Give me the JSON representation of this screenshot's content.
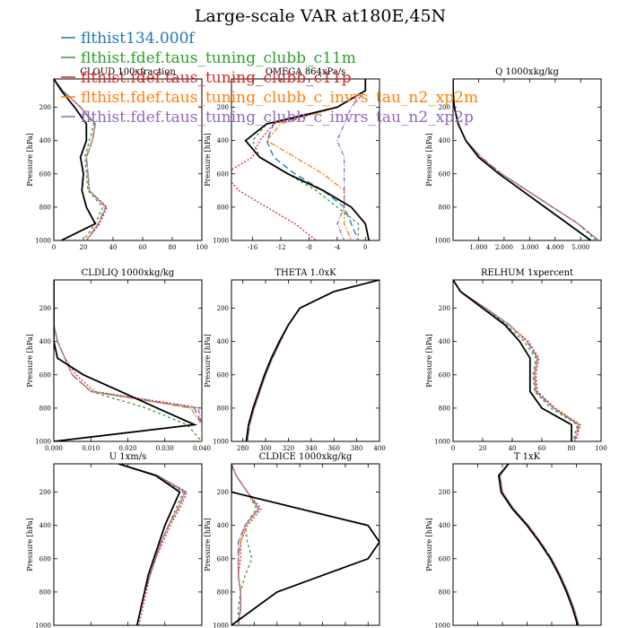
{
  "chart_data": {
    "type": "line",
    "title": "Large-scale VAR at180E,45N",
    "ylabel": "Pressure [hPa]",
    "series_names": [
      "flthist134.000f",
      "flthist.fdef.taus_tuning_clubb_c11m",
      "flthist.fdef.taus_tuning_clubb_c11p",
      "flthist.fdef.taus_tuning_clubb_c_invrs_tau_n2_xp2m",
      "flthist.fdef.taus_tuning_clubb_c_invrs_tau_n2_xp2p"
    ],
    "series_colors": [
      "#1f77b4",
      "#2ca02c",
      "#d62728",
      "#ff7f0e",
      "#9467bd"
    ],
    "control_color": "#000000",
    "pressure_levels": [
      30,
      100,
      200,
      300,
      400,
      500,
      600,
      700,
      800,
      900,
      1000
    ],
    "ylim": [
      1000,
      30
    ],
    "yticks": [
      200,
      400,
      600,
      800,
      1000
    ],
    "panels": [
      {
        "title": "CLOUD  100xfraction",
        "xlim": [
          0,
          100
        ],
        "xticks": [
          0,
          20,
          40,
          60,
          80,
          100
        ],
        "xticklabels": [
          "0",
          "20",
          "40",
          "60",
          "80",
          "100"
        ],
        "control": [
          0,
          5,
          14,
          22,
          22,
          18,
          20,
          19,
          22,
          28,
          5
        ],
        "perturbed": [
          [
            0,
            6,
            18,
            28,
            26,
            22,
            23,
            24,
            35,
            30,
            22
          ],
          [
            0,
            6,
            18,
            27,
            24,
            21,
            22,
            23,
            33,
            28,
            20
          ],
          [
            0,
            6,
            18,
            28,
            26,
            22,
            23,
            24,
            36,
            31,
            22
          ],
          [
            0,
            6,
            18,
            28,
            26,
            22,
            23,
            24,
            35,
            30,
            22
          ],
          [
            0,
            6,
            18,
            28,
            26,
            22,
            23,
            24,
            35,
            30,
            22
          ]
        ]
      },
      {
        "title": "OMEGA  864xPa/s",
        "xlim": [
          -19,
          2
        ],
        "xticks": [
          -16,
          -12,
          -8,
          -4,
          0
        ],
        "xticklabels": [
          "-16",
          "-12",
          "-8",
          "-4",
          "0"
        ],
        "control": [
          0,
          0,
          -4,
          -14,
          -17,
          -15,
          -11,
          -6,
          -2,
          0,
          0.5
        ],
        "perturbed": [
          [
            0,
            0,
            -4,
            -13,
            -14,
            -13,
            -10,
            -6,
            -3,
            -2,
            -1
          ],
          [
            0,
            0,
            -4,
            -14,
            -16,
            -15,
            -11,
            -7,
            -4,
            -1,
            -1
          ],
          [
            0,
            0,
            -4,
            -13,
            -15,
            -16,
            -20,
            -18,
            -14,
            -10,
            -7
          ],
          [
            0,
            0,
            -4,
            -12,
            -14,
            -10,
            -6,
            -3,
            -3,
            -3,
            -2
          ],
          [
            0,
            0,
            -2,
            -3,
            -4,
            -3,
            -3,
            -3,
            -3,
            -4,
            -3
          ]
        ]
      },
      {
        "title": "Q  1000xkg/kg",
        "xlim": [
          0,
          5.8
        ],
        "xticks": [
          1,
          2,
          3,
          4,
          5
        ],
        "xticklabels": [
          "1.000",
          "2.000",
          "3.000",
          "4.000",
          "5.000"
        ],
        "control": [
          0,
          0,
          0.05,
          0.2,
          0.5,
          1,
          1.8,
          2.7,
          3.6,
          4.5,
          5.4
        ],
        "perturbed": [
          [
            0,
            0,
            0.05,
            0.2,
            0.5,
            1.1,
            1.9,
            2.9,
            3.9,
            4.9,
            5.7
          ],
          [
            0,
            0,
            0.05,
            0.2,
            0.5,
            1.1,
            1.9,
            2.9,
            3.9,
            4.9,
            5.6
          ],
          [
            0,
            0,
            0.05,
            0.2,
            0.5,
            1.1,
            1.9,
            2.9,
            3.9,
            4.9,
            5.7
          ],
          [
            0,
            0,
            0.05,
            0.2,
            0.5,
            1.1,
            1.9,
            2.9,
            3.9,
            4.9,
            5.7
          ],
          [
            0,
            0,
            0.05,
            0.2,
            0.5,
            1.1,
            1.9,
            2.9,
            3.9,
            4.9,
            5.7
          ]
        ]
      },
      {
        "title": "CLDLIQ  1000xkg/kg",
        "xlim": [
          0,
          0.04
        ],
        "xticks": [
          0,
          0.01,
          0.02,
          0.03,
          0.04
        ],
        "xticklabels": [
          "0.000",
          "0.010",
          "0.020",
          "0.030",
          "0.040"
        ],
        "control": [
          0,
          0,
          0,
          0,
          0,
          0.001,
          0.008,
          0.018,
          0.028,
          0.038,
          0
        ],
        "perturbed": [
          [
            0,
            0,
            0,
            0,
            0.001,
            0.003,
            0.005,
            0.01,
            0.038,
            0.04,
            0.04
          ],
          [
            0,
            0,
            0,
            0,
            0.001,
            0.003,
            0.005,
            0.01,
            0.025,
            0.036,
            0.04
          ],
          [
            0,
            0,
            0,
            0,
            0.001,
            0.003,
            0.006,
            0.011,
            0.04,
            0.04,
            0.04
          ],
          [
            0,
            0,
            0,
            0,
            0.001,
            0.003,
            0.005,
            0.01,
            0.037,
            0.04,
            0.04
          ],
          [
            0,
            0,
            0,
            0,
            0.001,
            0.003,
            0.005,
            0.01,
            0.039,
            0.04,
            0.04
          ]
        ]
      },
      {
        "title": "THETA  1.0xK",
        "xlim": [
          270,
          400
        ],
        "xticks": [
          280,
          300,
          320,
          340,
          360,
          380,
          400
        ],
        "xticklabels": [
          "280",
          "300",
          "320",
          "340",
          "360",
          "380",
          "400"
        ],
        "control": [
          400,
          360,
          330,
          320,
          312,
          305,
          299,
          294,
          289,
          285,
          283
        ],
        "perturbed": [
          [
            400,
            360,
            330,
            320,
            313,
            306,
            300,
            295,
            290,
            286,
            284
          ],
          [
            400,
            360,
            330,
            320,
            313,
            306,
            300,
            295,
            290,
            286,
            284
          ],
          [
            400,
            360,
            330,
            320,
            313,
            306,
            300,
            295,
            290,
            286,
            284
          ],
          [
            400,
            360,
            330,
            320,
            313,
            306,
            300,
            295,
            290,
            286,
            284
          ],
          [
            400,
            360,
            330,
            320,
            313,
            306,
            300,
            295,
            290,
            286,
            284
          ]
        ]
      },
      {
        "title": "RELHUM  1xpercent",
        "xlim": [
          0,
          100
        ],
        "xticks": [
          0,
          20,
          40,
          60,
          80,
          100
        ],
        "xticklabels": [
          "0",
          "20",
          "40",
          "60",
          "80",
          "100"
        ],
        "control": [
          0,
          5,
          20,
          35,
          45,
          52,
          52,
          52,
          60,
          80,
          80
        ],
        "perturbed": [
          [
            0,
            5,
            22,
            38,
            50,
            57,
            55,
            56,
            68,
            85,
            82
          ],
          [
            0,
            5,
            22,
            36,
            48,
            56,
            54,
            55,
            66,
            84,
            81
          ],
          [
            0,
            5,
            22,
            38,
            51,
            58,
            56,
            57,
            69,
            86,
            83
          ],
          [
            0,
            5,
            22,
            38,
            50,
            57,
            55,
            56,
            68,
            85,
            82
          ],
          [
            0,
            5,
            22,
            38,
            50,
            57,
            55,
            56,
            68,
            85,
            82
          ]
        ]
      },
      {
        "title": "U  1xm/s",
        "xlim": [
          -40,
          40
        ],
        "xticks": [
          -40,
          -20,
          0,
          20,
          40
        ],
        "xticklabels": [
          "-40",
          "-20",
          "0",
          "20",
          "40"
        ],
        "control": [
          -5,
          15,
          28,
          24,
          20,
          17,
          14,
          11,
          9,
          7,
          5
        ],
        "perturbed": [
          [
            -5,
            16,
            31,
            27,
            22,
            18,
            15,
            12,
            9,
            7,
            5
          ],
          [
            -5,
            16,
            30,
            26,
            22,
            18,
            15,
            12,
            9,
            7,
            5
          ],
          [
            -5,
            16,
            32,
            28,
            23,
            19,
            15,
            12,
            10,
            8,
            6
          ],
          [
            -5,
            16,
            31,
            27,
            22,
            18,
            15,
            12,
            9,
            7,
            5
          ],
          [
            -5,
            16,
            31,
            27,
            22,
            18,
            15,
            12,
            9,
            7,
            5
          ]
        ]
      },
      {
        "title": "CLDICE  1000xkg/kg",
        "xlim": [
          0,
          0.0065
        ],
        "xticks": [
          0,
          0.001,
          0.002,
          0.003,
          0.004,
          0.005,
          0.006
        ],
        "xticklabels": [
          "0.0000000000",
          "0.0010000000",
          "0.0019999999",
          "0.0029999999",
          "0.0039999999",
          "0.0049999999",
          "0.0060000000"
        ],
        "control": [
          0,
          0,
          0,
          0.003,
          0.006,
          0.0065,
          0.006,
          0.004,
          0.002,
          0.001,
          0
        ],
        "perturbed": [
          [
            0,
            0.0002,
            0.0007,
            0.0012,
            0.0006,
            0.0003,
            0.0003,
            0.0003,
            0.0004,
            0.0004,
            0.0003
          ],
          [
            0,
            0.0002,
            0.0007,
            0.0011,
            0.0006,
            0.0007,
            0.0009,
            0.0006,
            0.0004,
            0.0003,
            0.0003
          ],
          [
            0,
            0.0002,
            0.0007,
            0.0013,
            0.0007,
            0.0004,
            0.0004,
            0.0003,
            0.0004,
            0.0004,
            0.0003
          ],
          [
            0,
            0.0002,
            0.0007,
            0.0012,
            0.0006,
            0.0004,
            0.0003,
            0.0003,
            0.0004,
            0.0004,
            0.0003
          ],
          [
            0,
            0.0002,
            0.0007,
            0.0012,
            0.0006,
            0.0003,
            0.0003,
            0.0003,
            0.0004,
            0.0004,
            0.0003
          ]
        ]
      },
      {
        "title": "T  1xK",
        "xlim": [
          180,
          300
        ],
        "xticks": [
          180,
          200,
          220,
          240,
          260,
          280,
          300
        ],
        "xticklabels": [
          "180",
          "200",
          "220",
          "240",
          "260",
          "280",
          "300"
        ],
        "control": [
          225,
          217,
          219,
          228,
          240,
          250,
          259,
          266,
          272,
          277,
          281
        ],
        "perturbed": [
          [
            225,
            218,
            220,
            229,
            241,
            251,
            260,
            267,
            273,
            278,
            282
          ],
          [
            225,
            218,
            220,
            229,
            241,
            251,
            260,
            267,
            273,
            278,
            282
          ],
          [
            225,
            218,
            220,
            229,
            241,
            251,
            260,
            267,
            273,
            278,
            282
          ],
          [
            225,
            218,
            220,
            229,
            241,
            251,
            260,
            267,
            273,
            278,
            282
          ],
          [
            225,
            218,
            220,
            229,
            241,
            251,
            260,
            267,
            273,
            278,
            282
          ]
        ]
      }
    ]
  }
}
